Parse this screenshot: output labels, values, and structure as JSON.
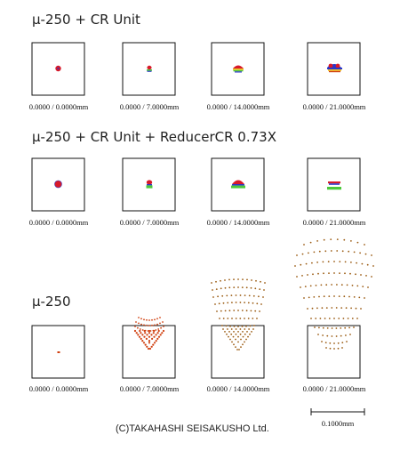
{
  "titles": {
    "row1": "μ-250 + CR Unit",
    "row2": "μ-250 + CR Unit + ReducerCR 0.73X",
    "row3": "μ-250"
  },
  "captions": [
    "0.0000 / 0.0000mm",
    "0.0000 / 7.0000mm",
    "0.0000 / 14.0000mm",
    "0.0000 / 21.0000mm"
  ],
  "scale_bar": {
    "label": "0.1000mm"
  },
  "copyright": "(C)TAKAHASHI SEISAKUSHO Ltd.",
  "colors": {
    "frame": "#111111",
    "red": "#d81a2a",
    "blue": "#2a36c8",
    "green": "#4cc83a",
    "yellow": "#f0c020",
    "orange": "#d04010",
    "brown": "#9a5a10"
  }
}
